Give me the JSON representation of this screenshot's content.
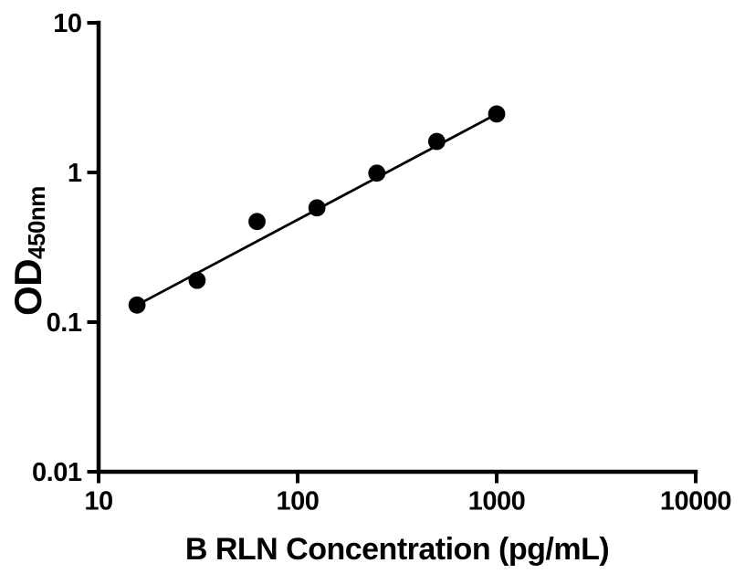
{
  "figure": {
    "background_color": "#ffffff",
    "ink_color": "#000000"
  },
  "chart_data": {
    "type": "scatter",
    "title": "",
    "xlabel": "B RLN Concentration (pg/mL)",
    "ylabel": {
      "main": "OD",
      "subscript": "450nm"
    },
    "x_scale": "log10",
    "y_scale": "log10",
    "xlim": [
      10,
      10000
    ],
    "ylim": [
      0.01,
      10
    ],
    "x_ticks": [
      {
        "value": 10,
        "label": "10"
      },
      {
        "value": 100,
        "label": "100"
      },
      {
        "value": 1000,
        "label": "1000"
      },
      {
        "value": 10000,
        "label": "10000"
      }
    ],
    "y_ticks": [
      {
        "value": 0.01,
        "label": "0.01"
      },
      {
        "value": 0.1,
        "label": "0.1"
      },
      {
        "value": 1,
        "label": "1"
      },
      {
        "value": 10,
        "label": "10"
      }
    ],
    "grid": false,
    "legend": "none",
    "marker_color": "#000000",
    "line_color": "#000000",
    "series": [
      {
        "name": "standard-curve-points",
        "type": "scatter",
        "marker": "filled-circle",
        "points": [
          {
            "x": 15.6,
            "y": 0.13
          },
          {
            "x": 31.25,
            "y": 0.19
          },
          {
            "x": 62.5,
            "y": 0.47
          },
          {
            "x": 125,
            "y": 0.58
          },
          {
            "x": 250,
            "y": 0.99
          },
          {
            "x": 500,
            "y": 1.61
          },
          {
            "x": 1000,
            "y": 2.46
          }
        ]
      },
      {
        "name": "fit-line",
        "type": "line",
        "points": [
          {
            "x": 15.6,
            "y": 0.13
          },
          {
            "x": 1000,
            "y": 2.46
          }
        ]
      }
    ]
  }
}
